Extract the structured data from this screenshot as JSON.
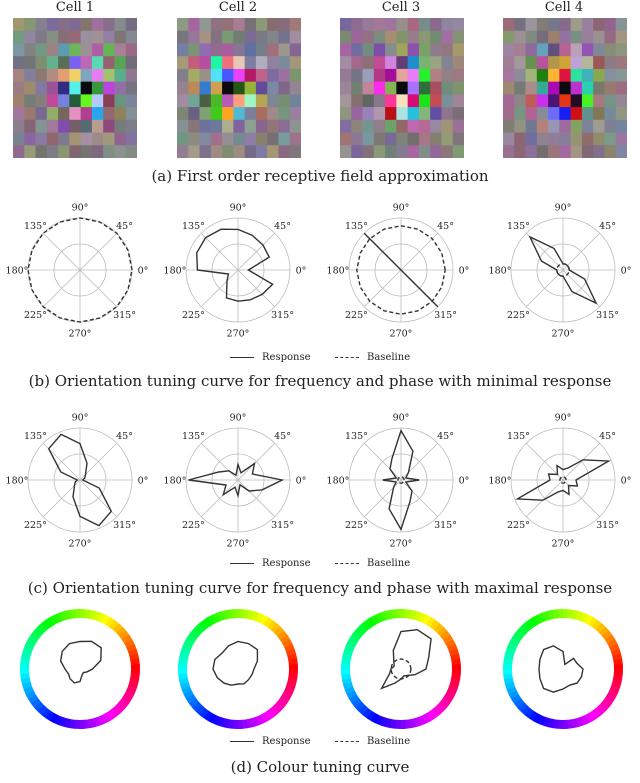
{
  "cells": [
    {
      "title": "Cell 1"
    },
    {
      "title": "Cell 2"
    },
    {
      "title": "Cell 3"
    },
    {
      "title": "Cell 4"
    }
  ],
  "captions": {
    "a": "(a) First order receptive field approximation",
    "b": "(b) Orientation tuning curve for frequency and phase with minimal response",
    "c": "(c) Orientation tuning curve for frequency and phase with maximal response",
    "d": "(d) Colour tuning curve"
  },
  "legend": {
    "response": "Response",
    "baseline": "Baseline"
  },
  "chart_data": [
    {
      "type": "polar",
      "panel": "b",
      "angle_labels": [
        "0°",
        "45°",
        "90°",
        "135°",
        "180°",
        "225°",
        "270°",
        "315°"
      ],
      "rmax": 1.0,
      "series_names": [
        "Response",
        "Baseline"
      ],
      "cells": [
        {
          "cell": "Cell 1",
          "response": [
            0,
            0,
            0,
            0,
            0,
            0,
            0,
            0,
            0,
            0,
            0,
            0,
            0,
            0,
            0,
            0
          ],
          "baseline": [
            1,
            1,
            1,
            1,
            1,
            1,
            1,
            1,
            1,
            1,
            1,
            1,
            1,
            1,
            1,
            1
          ]
        },
        {
          "cell": "Cell 2",
          "response": [
            0.2,
            0.65,
            0.68,
            0.72,
            0.78,
            0.85,
            0.88,
            0.86,
            0.78,
            0.2,
            0.3,
            0.58,
            0.6,
            0.62,
            0.66,
            0.72
          ],
          "baseline": []
        },
        {
          "cell": "Cell 3",
          "response": [
            0,
            0,
            0,
            0,
            0,
            0,
            1,
            0,
            0,
            0,
            0,
            0,
            0,
            0,
            1,
            0
          ],
          "baseline": [
            0.85,
            0.85,
            0.85,
            0.85,
            0.85,
            0.85,
            0.85,
            0.85,
            0.85,
            0.85,
            0.85,
            0.85,
            0.85,
            0.85,
            0.85,
            0.85
          ]
        },
        {
          "cell": "Cell 4",
          "response": [
            0.12,
            0.12,
            0.12,
            0.12,
            0.12,
            0.45,
            0.9,
            0.45,
            0.12,
            0.12,
            0.12,
            0.12,
            0.12,
            0.45,
            0.9,
            0.45
          ],
          "baseline": [
            0.12,
            0.12,
            0.12,
            0.12,
            0.12,
            0.12,
            0.12,
            0.12,
            0.12,
            0.12,
            0.12,
            0.12,
            0.12,
            0.12,
            0.12,
            0.12
          ]
        }
      ]
    },
    {
      "type": "polar",
      "panel": "c",
      "angle_labels": [
        "0°",
        "45°",
        "90°",
        "135°",
        "180°",
        "225°",
        "270°",
        "315°"
      ],
      "rmax": 1.0,
      "series_names": [
        "Response",
        "Baseline"
      ],
      "cells": [
        {
          "cell": "Cell 1",
          "response": [
            0.05,
            0.1,
            0.15,
            0.35,
            0.7,
            0.95,
            0.85,
            0.4,
            0.05,
            0.1,
            0.15,
            0.35,
            0.7,
            0.95,
            0.85,
            0.4
          ],
          "baseline": []
        },
        {
          "cell": "Cell 2",
          "response": [
            0.85,
            0.3,
            0.45,
            0.15,
            0.3,
            0.1,
            0.25,
            0.4,
            0.95,
            0.25,
            0.4,
            0.15,
            0.3,
            0.1,
            0.3,
            0.5
          ],
          "baseline": []
        },
        {
          "cell": "Cell 3",
          "response": [
            0.35,
            0.1,
            0.2,
            0.6,
            0.95,
            0.45,
            0.3,
            0.1,
            0.35,
            0.1,
            0.2,
            0.6,
            0.95,
            0.45,
            0.3,
            0.1
          ],
          "baseline": [
            0.06,
            0.06,
            0.06,
            0.06,
            0.06,
            0.06,
            0.06,
            0.06,
            0.06,
            0.06,
            0.06,
            0.06,
            0.06,
            0.06,
            0.06,
            0.06
          ]
        },
        {
          "cell": "Cell 4",
          "response": [
            0.25,
            0.95,
            0.55,
            0.25,
            0.2,
            0.3,
            0.15,
            0.3,
            0.25,
            0.95,
            0.55,
            0.25,
            0.2,
            0.3,
            0.15,
            0.3
          ],
          "baseline": [
            0.06,
            0.06,
            0.06,
            0.06,
            0.06,
            0.06,
            0.06,
            0.06,
            0.06,
            0.06,
            0.06,
            0.06,
            0.06,
            0.06,
            0.06,
            0.06
          ]
        }
      ]
    },
    {
      "type": "polar",
      "panel": "d",
      "series_names": [
        "Response",
        "Baseline"
      ],
      "cells": [
        {
          "cell": "Cell 1",
          "response": [
            0.25,
            0.45,
            0.6,
            0.6,
            0.55,
            0.55,
            0.5,
            0.42,
            0.3,
            0.25,
            0.28,
            0.3,
            0.25,
            0.12,
            0.1,
            0.15
          ],
          "baseline": []
        },
        {
          "cell": "Cell 2",
          "response": [
            0.32,
            0.42,
            0.55,
            0.55,
            0.55,
            0.5,
            0.45,
            0.5,
            0.5,
            0.45,
            0.4,
            0.35,
            0.3,
            0.32,
            0.3,
            0.3
          ],
          "baseline": []
        },
        {
          "cell": "Cell 3",
          "response": [
            0.5,
            0.6,
            0.85,
            0.85,
            0.75,
            0.4,
            0.2,
            0.15,
            0.2,
            0.25,
            0.55,
            0.3,
            0.2,
            0.15,
            0.18,
            0.3
          ],
          "baseline": [
            0.2,
            0.2,
            0.2,
            0.2,
            0.2,
            0.2,
            0.2,
            0.2,
            0.2,
            0.2,
            0.2,
            0.2,
            0.2,
            0.2,
            0.2,
            0.2
          ]
        },
        {
          "cell": "Cell 4",
          "response": [
            0.4,
            0.3,
            0.3,
            0.1,
            0.35,
            0.5,
            0.55,
            0.5,
            0.48,
            0.5,
            0.55,
            0.5,
            0.4,
            0.35,
            0.4,
            0.4
          ],
          "baseline": []
        }
      ]
    }
  ]
}
